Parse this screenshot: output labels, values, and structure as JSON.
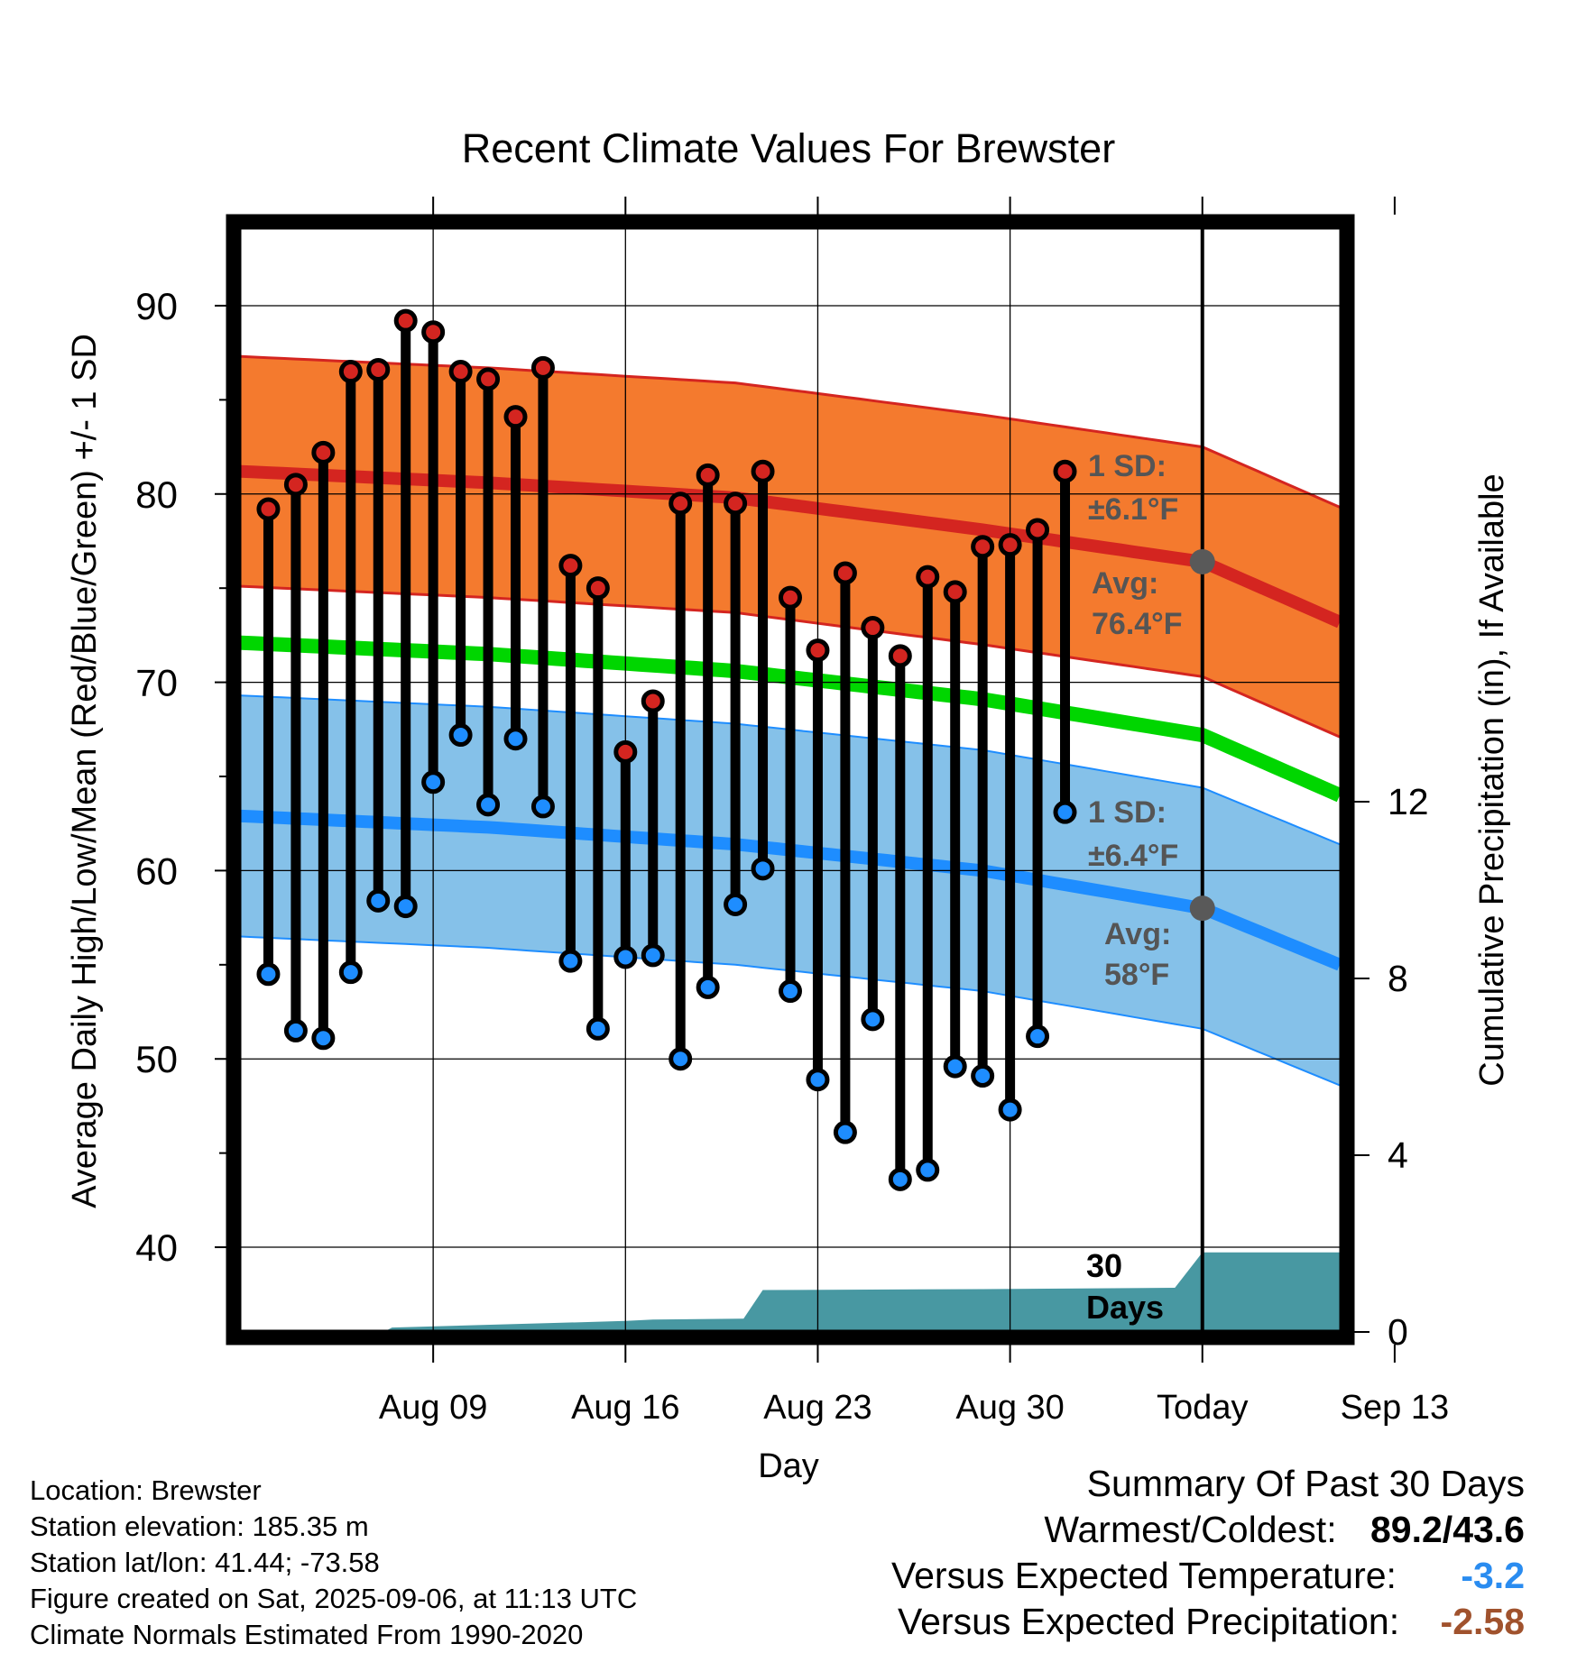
{
  "chart_data": {
    "type": "line",
    "title": "Recent Climate Values For Brewster",
    "xlabel": "Day",
    "ylabel": "Average Daily High/Low/Mean (Red/Blue/Green) +/- 1 SD",
    "ylabel_right": "Cumulative Precipitation (in), If Available",
    "ylim": [
      35.5,
      94.5
    ],
    "y_ticks": [
      40,
      50,
      60,
      70,
      80,
      90
    ],
    "y2lim": [
      0,
      20
    ],
    "y2_ticks": [
      0,
      4,
      8,
      12
    ],
    "x_start_day_index": -1,
    "x_end_day_index": 39,
    "x_tick_days": [
      6,
      13,
      20,
      27,
      34,
      41
    ],
    "x_tick_labels": [
      "Aug 09",
      "Aug 16",
      "Aug 23",
      "Aug 30",
      "Today",
      "Sep 13"
    ],
    "daily_highs": {
      "days": [
        "Aug 07",
        "Aug 08",
        "Aug 09",
        "Aug 10",
        "Aug 11",
        "Aug 12",
        "Aug 13",
        "Aug 14",
        "Aug 15",
        "Aug 16",
        "Aug 17",
        "Aug 18",
        "Aug 19",
        "Aug 20",
        "Aug 21",
        "Aug 22",
        "Aug 23",
        "Aug 24",
        "Aug 25",
        "Aug 26",
        "Aug 27",
        "Aug 28",
        "Aug 29",
        "Aug 30",
        "Aug 31",
        "Sep 01",
        "Sep 02",
        "Sep 03",
        "Sep 04",
        "Sep 05"
      ],
      "values": [
        79.2,
        80.5,
        82.2,
        86.5,
        86.6,
        89.2,
        88.6,
        86.5,
        86.1,
        84.1,
        86.7,
        76.2,
        75.0,
        66.3,
        69.0,
        79.5,
        81.0,
        79.5,
        81.2,
        74.5,
        71.7,
        75.8,
        72.9,
        71.4,
        75.6,
        74.8,
        77.2,
        77.3,
        78.1,
        81.2
      ]
    },
    "daily_lows": {
      "values": [
        54.5,
        51.5,
        51.1,
        54.6,
        58.4,
        58.1,
        64.7,
        67.2,
        63.5,
        67.0,
        63.4,
        55.2,
        51.6,
        55.4,
        55.5,
        50.0,
        53.8,
        58.2,
        60.1,
        53.6,
        48.9,
        46.1,
        52.1,
        43.6,
        44.1,
        49.6,
        49.1,
        47.3,
        51.2,
        63.1
      ]
    },
    "normal_high": {
      "days": [
        -1,
        8,
        17,
        26,
        34,
        39
      ],
      "values": [
        81.2,
        80.6,
        79.8,
        78.1,
        76.4,
        73.2
      ]
    },
    "normal_high_sd": 6.1,
    "normal_mean": {
      "days": [
        -1,
        8,
        17,
        26,
        34,
        39
      ],
      "values": [
        72.1,
        71.5,
        70.6,
        69.1,
        67.2,
        64.0
      ]
    },
    "normal_low": {
      "days": [
        -1,
        8,
        17,
        26,
        34,
        39
      ],
      "values": [
        62.9,
        62.3,
        61.4,
        60.0,
        58.0,
        55.0
      ]
    },
    "normal_low_sd": 6.4,
    "precip_cumulative": {
      "days": [
        -1,
        4.2,
        4.5,
        13,
        14,
        17.3,
        18,
        26,
        33,
        34,
        39
      ],
      "values": [
        0,
        0,
        0.1,
        0.25,
        0.28,
        0.3,
        0.95,
        0.97,
        1.0,
        1.8,
        1.8
      ]
    },
    "colors": {
      "high_band": "#f47a2e",
      "high_line": "#d42520",
      "mean_line": "#00d600",
      "low_band": "#85c1e9",
      "low_line": "#1e8dff",
      "precip": "#4898a2",
      "high_marker": "#d42520",
      "low_marker": "#1e8dff"
    },
    "annotations": {
      "high_sd_line1": "1 SD:",
      "high_sd_line2": "±6.1°F",
      "high_avg_line1": "Avg:",
      "high_avg_line2": "76.4°F",
      "low_sd_line1": "1 SD:",
      "low_sd_line2": "±6.4°F",
      "low_avg_line1": "Avg:",
      "low_avg_line2": "58°F",
      "days_line1": "30",
      "days_line2": "Days"
    },
    "grid": true
  },
  "info": {
    "location": "Location: Brewster",
    "elevation": "Station elevation: 185.35 m",
    "latlon": "Station lat/lon: 41.44; -73.58",
    "created": "Figure created on Sat, 2025-09-06, at 11:13 UTC",
    "normals": "Climate Normals Estimated From 1990-2020"
  },
  "summary": {
    "title": "Summary Of Past 30 Days",
    "warm_cold_label": "Warmest/Coldest:",
    "warm_cold_value": "89.2/43.6",
    "temp_label": "Versus Expected Temperature:",
    "temp_value": "-3.2",
    "temp_color": "#2a8cf0",
    "precip_label": "Versus Expected Precipitation:",
    "precip_value": "-2.58",
    "precip_color": "#a0522d"
  }
}
